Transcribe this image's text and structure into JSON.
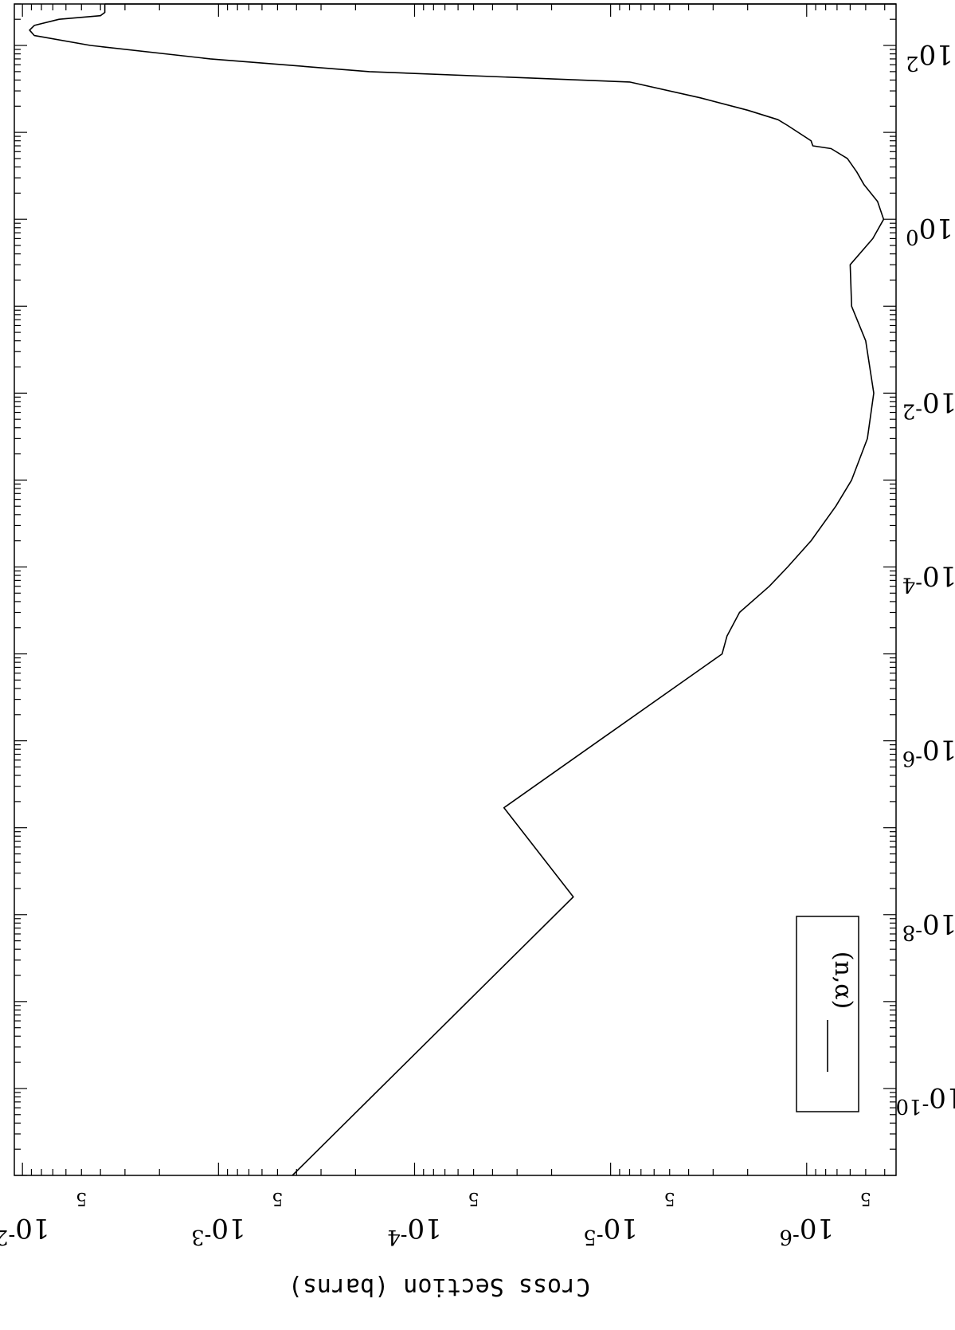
{
  "chart_data": {
    "type": "line",
    "orientation": "rotated-180",
    "x_scale": "log",
    "y_scale": "log",
    "xlim": [
      1e-11,
      300
    ],
    "ylim": [
      3.5e-07,
      0.011
    ],
    "xlabel": "",
    "ylabel": "Cross Section (barns)",
    "x_ticks": [
      {
        "value": 1e-10,
        "label_base": "10",
        "label_exp": "-10"
      },
      {
        "value": 1e-08,
        "label_base": "10",
        "label_exp": "-8"
      },
      {
        "value": 1e-06,
        "label_base": "10",
        "label_exp": "-6"
      },
      {
        "value": 0.0001,
        "label_base": "10",
        "label_exp": "-4"
      },
      {
        "value": 0.01,
        "label_base": "10",
        "label_exp": "-2"
      },
      {
        "value": 1,
        "label_base": "10",
        "label_exp": "0"
      },
      {
        "value": 100,
        "label_base": "10",
        "label_exp": "2"
      }
    ],
    "y_ticks": [
      {
        "value": 1e-06,
        "label_base": "10",
        "label_exp": "-6"
      },
      {
        "value": 1e-05,
        "label_base": "10",
        "label_exp": "-5"
      },
      {
        "value": 0.0001,
        "label_base": "10",
        "label_exp": "-4"
      },
      {
        "value": 0.001,
        "label_base": "10",
        "label_exp": "-3"
      },
      {
        "value": 0.01,
        "label_base": "10",
        "label_exp": "-2"
      }
    ],
    "y_minor_labels": [
      {
        "value": 5e-07,
        "label": "5"
      },
      {
        "value": 5e-06,
        "label": "5"
      },
      {
        "value": 5e-05,
        "label": "5"
      },
      {
        "value": 0.0005,
        "label": "5"
      },
      {
        "value": 0.005,
        "label": "5"
      }
    ],
    "legend": {
      "position": "bottom-left-in-rotated-view",
      "entries": [
        "(n,α)"
      ]
    },
    "series": [
      {
        "name": "(n,α)",
        "points": [
          [
            1e-11,
            0.00042
          ],
          [
            1.6e-08,
            1.55e-05
          ],
          [
            1.7e-07,
            3.5e-05
          ],
          [
            1e-05,
            2.7e-06
          ],
          [
            1.6e-05,
            2.55e-06
          ],
          [
            3e-05,
            2.2e-06
          ],
          [
            6e-05,
            1.55e-06
          ],
          [
            0.0001,
            1.25e-06
          ],
          [
            0.0002,
            9.5e-07
          ],
          [
            0.0005,
            7.1e-07
          ],
          [
            0.001,
            5.9e-07
          ],
          [
            0.003,
            4.9e-07
          ],
          [
            0.01,
            4.55e-07
          ],
          [
            0.04,
            5e-07
          ],
          [
            0.1,
            5.9e-07
          ],
          [
            0.3,
            6e-07
          ],
          [
            0.6,
            4.6e-07
          ],
          [
            1.0,
            4.05e-07
          ],
          [
            1.6,
            4.35e-07
          ],
          [
            2.5,
            5.1e-07
          ],
          [
            3.5,
            5.55e-07
          ],
          [
            5,
            6.2e-07
          ],
          [
            6.5,
            7.5e-07
          ],
          [
            7,
            9.3e-07
          ],
          [
            8,
            9.5e-07
          ],
          [
            12,
            1.25e-06
          ],
          [
            14,
            1.4e-06
          ],
          [
            18,
            2e-06
          ],
          [
            25,
            3.5e-06
          ],
          [
            38,
            8e-06
          ],
          [
            50,
            0.00017
          ],
          [
            70,
            0.0011
          ],
          [
            100,
            0.0045
          ],
          [
            130,
            0.0087
          ],
          [
            150,
            0.0092
          ],
          [
            170,
            0.0087
          ],
          [
            200,
            0.0065
          ],
          [
            220,
            0.004
          ],
          [
            240,
            0.0038
          ],
          [
            300,
            0.0038
          ]
        ]
      }
    ]
  }
}
